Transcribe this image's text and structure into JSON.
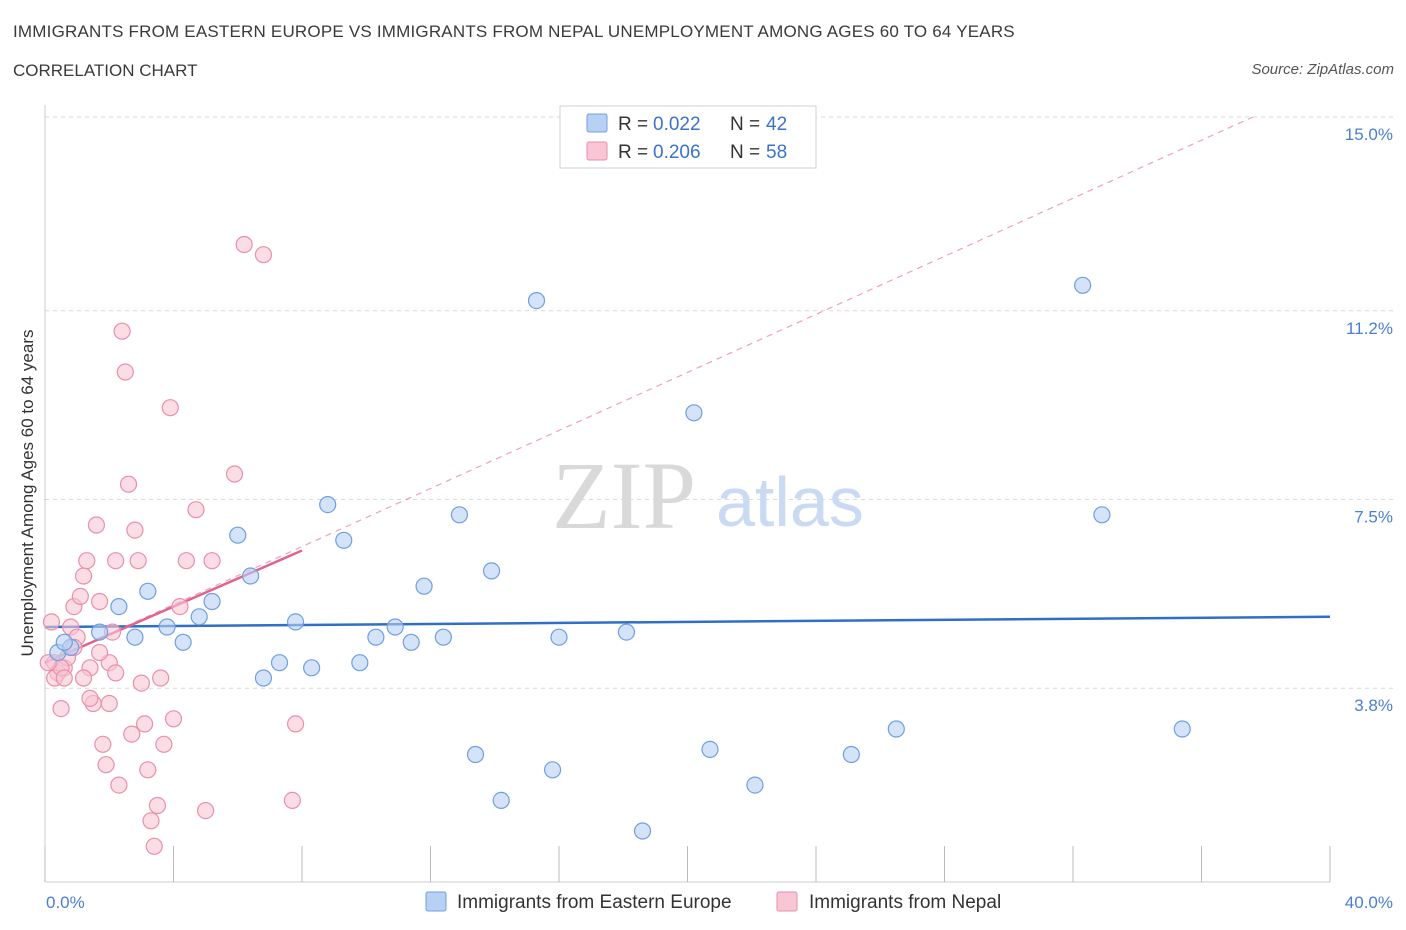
{
  "header": {
    "title": "IMMIGRANTS FROM EASTERN EUROPE VS IMMIGRANTS FROM NEPAL UNEMPLOYMENT AMONG AGES 60 TO 64 YEARS",
    "subtitle": "CORRELATION CHART",
    "source": "Source: ZipAtlas.com"
  },
  "watermark": {
    "zip": "ZIP",
    "atlas": "atlas"
  },
  "legend": {
    "r_label": "R =",
    "n_label": "N =",
    "series": [
      {
        "r": "0.022",
        "n": "42"
      },
      {
        "r": "0.206",
        "n": "58"
      }
    ]
  },
  "colors": {
    "blue_fill": "#b7d0f3",
    "blue_stroke": "#6f9fe0",
    "blue_line": "#2f6fc8",
    "pink_fill": "#f8c6d5",
    "pink_stroke": "#ea8fab",
    "pink_line": "#e0648f",
    "grid": "#d9d9d9",
    "axis_label": "#4a7fd0"
  },
  "chart_data": {
    "type": "scatter",
    "xlabel": "",
    "ylabel": "Unemployment Among Ages 60 to 64 years",
    "xlim": [
      0,
      40
    ],
    "ylim": [
      0,
      15
    ],
    "x_tick_labels": [
      "0.0%",
      "40.0%"
    ],
    "y_ticks": [
      3.8,
      7.5,
      11.2,
      15.0
    ],
    "y_tick_labels": [
      "3.8%",
      "7.5%",
      "11.2%",
      "15.0%"
    ],
    "grid": "horizontal dashed",
    "legend_position": "top-center",
    "series": [
      {
        "name": "Immigrants from Eastern Europe",
        "color": "#b7d0f3",
        "trend": {
          "x": [
            0,
            40
          ],
          "y": [
            5.0,
            5.2
          ]
        },
        "points": [
          [
            0.4,
            4.5
          ],
          [
            0.8,
            4.6
          ],
          [
            1.7,
            4.9
          ],
          [
            2.3,
            5.4
          ],
          [
            2.8,
            4.8
          ],
          [
            3.2,
            5.7
          ],
          [
            3.8,
            5.0
          ],
          [
            4.3,
            4.7
          ],
          [
            4.8,
            5.2
          ],
          [
            5.2,
            5.5
          ],
          [
            6.0,
            6.8
          ],
          [
            6.4,
            6.0
          ],
          [
            6.8,
            4.0
          ],
          [
            7.3,
            4.3
          ],
          [
            7.8,
            5.1
          ],
          [
            8.3,
            4.2
          ],
          [
            8.8,
            7.4
          ],
          [
            9.3,
            6.7
          ],
          [
            9.8,
            4.3
          ],
          [
            10.3,
            4.8
          ],
          [
            10.9,
            5.0
          ],
          [
            11.4,
            4.7
          ],
          [
            11.8,
            5.8
          ],
          [
            12.4,
            4.8
          ],
          [
            12.9,
            7.2
          ],
          [
            13.4,
            2.5
          ],
          [
            13.9,
            6.1
          ],
          [
            14.2,
            1.6
          ],
          [
            15.3,
            11.4
          ],
          [
            15.8,
            2.2
          ],
          [
            16.0,
            4.8
          ],
          [
            18.1,
            4.9
          ],
          [
            18.6,
            1.0
          ],
          [
            20.2,
            9.2
          ],
          [
            20.7,
            2.6
          ],
          [
            22.1,
            1.9
          ],
          [
            25.1,
            2.5
          ],
          [
            26.5,
            3.0
          ],
          [
            32.3,
            11.7
          ],
          [
            32.9,
            7.2
          ],
          [
            35.4,
            3.0
          ],
          [
            0.6,
            4.7
          ]
        ]
      },
      {
        "name": "Immigrants from Nepal",
        "color": "#f8c6d5",
        "trend": {
          "x": [
            0,
            8
          ],
          "y": [
            4.3,
            6.5
          ]
        },
        "trend_extended": {
          "x": [
            0,
            37.6
          ],
          "y": [
            4.3,
            15.0
          ]
        },
        "points": [
          [
            0.2,
            5.1
          ],
          [
            0.3,
            4.3
          ],
          [
            0.4,
            4.1
          ],
          [
            0.5,
            3.4
          ],
          [
            0.6,
            4.2
          ],
          [
            0.7,
            4.4
          ],
          [
            0.8,
            5.0
          ],
          [
            0.9,
            5.4
          ],
          [
            1.0,
            4.8
          ],
          [
            1.1,
            5.6
          ],
          [
            1.2,
            6.0
          ],
          [
            1.3,
            6.3
          ],
          [
            1.4,
            4.2
          ],
          [
            1.5,
            3.5
          ],
          [
            1.6,
            7.0
          ],
          [
            1.7,
            5.5
          ],
          [
            1.8,
            2.7
          ],
          [
            1.9,
            2.3
          ],
          [
            2.0,
            4.3
          ],
          [
            2.1,
            4.9
          ],
          [
            2.2,
            6.3
          ],
          [
            2.3,
            1.9
          ],
          [
            2.4,
            10.8
          ],
          [
            2.5,
            10.0
          ],
          [
            2.6,
            7.8
          ],
          [
            2.7,
            2.9
          ],
          [
            2.8,
            6.9
          ],
          [
            2.9,
            6.3
          ],
          [
            3.0,
            3.9
          ],
          [
            3.1,
            3.1
          ],
          [
            3.2,
            2.2
          ],
          [
            3.3,
            1.2
          ],
          [
            3.4,
            0.7
          ],
          [
            3.5,
            1.5
          ],
          [
            3.6,
            4.0
          ],
          [
            3.7,
            2.7
          ],
          [
            3.9,
            9.3
          ],
          [
            4.0,
            3.2
          ],
          [
            4.2,
            5.4
          ],
          [
            4.4,
            6.3
          ],
          [
            4.7,
            7.3
          ],
          [
            5.0,
            1.4
          ],
          [
            5.2,
            6.3
          ],
          [
            5.9,
            8.0
          ],
          [
            6.2,
            12.5
          ],
          [
            6.8,
            12.3
          ],
          [
            7.7,
            1.6
          ],
          [
            7.8,
            3.1
          ],
          [
            0.3,
            4.0
          ],
          [
            0.5,
            4.2
          ],
          [
            0.9,
            4.6
          ],
          [
            1.2,
            4.0
          ],
          [
            1.4,
            3.6
          ],
          [
            1.7,
            4.5
          ],
          [
            2.0,
            3.5
          ],
          [
            2.2,
            4.1
          ],
          [
            0.1,
            4.3
          ],
          [
            0.6,
            4.0
          ]
        ]
      }
    ]
  }
}
